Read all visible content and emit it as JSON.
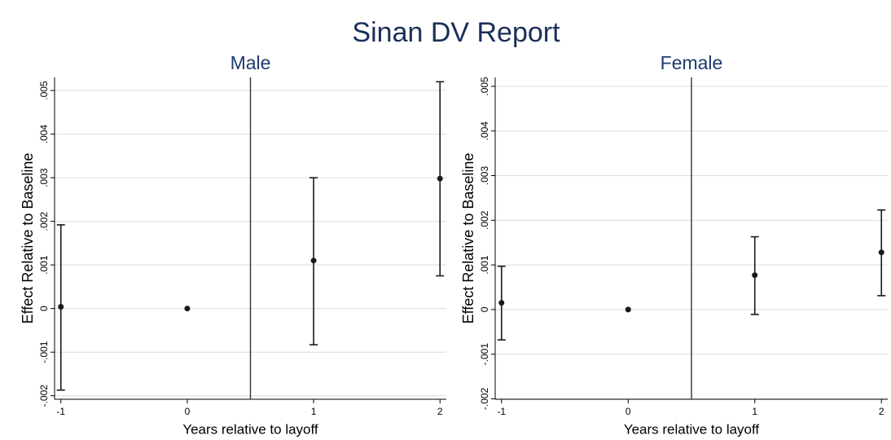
{
  "title": "Sinan DV Report",
  "chart_data": [
    {
      "type": "errorbar",
      "title": "Male",
      "xlabel": "Years relative to layoff",
      "ylabel": "Effect Relative to Baseline",
      "x": [
        -1,
        0,
        1,
        2
      ],
      "values": [
        4e-05,
        0,
        0.0011,
        0.00298
      ],
      "lower": [
        -0.00187,
        0,
        -0.00083,
        0.00075
      ],
      "upper": [
        0.00192,
        0,
        0.003,
        0.0052
      ],
      "xlim": [
        -1.05,
        2.05
      ],
      "xticks": [
        -1,
        0,
        1,
        2
      ],
      "ylim": [
        -0.00208,
        0.0053
      ],
      "yticks": [
        {
          "value": -0.002,
          "label": "-.002"
        },
        {
          "value": -0.001,
          "label": "-.001"
        },
        0,
        {
          "value": 0.001,
          "label": ".001"
        },
        {
          "value": 0.002,
          "label": ".002"
        },
        {
          "value": 0.003,
          "label": ".003"
        },
        {
          "value": 0.004,
          "label": ".004"
        },
        {
          "value": 0.005,
          "label": ".005"
        }
      ],
      "xline": 0.5,
      "grid": true,
      "color": "#1a1a1a"
    },
    {
      "type": "errorbar",
      "title": "Female",
      "xlabel": "Years relative to layoff",
      "ylabel": "Effect Relative to Baseline",
      "x": [
        -1,
        0,
        1,
        2
      ],
      "values": [
        0.00015,
        0,
        0.00077,
        0.00128
      ],
      "lower": [
        -0.00068,
        0,
        -0.00011,
        0.00031
      ],
      "upper": [
        0.00097,
        0,
        0.00163,
        0.00223
      ],
      "xlim": [
        -1.05,
        2.05
      ],
      "xticks": [
        -1,
        0,
        1,
        2
      ],
      "ylim": [
        -0.00201,
        0.0052
      ],
      "yticks": [
        {
          "value": -0.002,
          "label": "-.002"
        },
        {
          "value": -0.001,
          "label": "-.001"
        },
        0,
        {
          "value": 0.001,
          "label": ".001"
        },
        {
          "value": 0.002,
          "label": ".002"
        },
        {
          "value": 0.003,
          "label": ".003"
        },
        {
          "value": 0.004,
          "label": ".004"
        },
        {
          "value": 0.005,
          "label": ".005"
        }
      ],
      "xline": 0.5,
      "grid": true,
      "color": "#1a1a1a"
    }
  ]
}
